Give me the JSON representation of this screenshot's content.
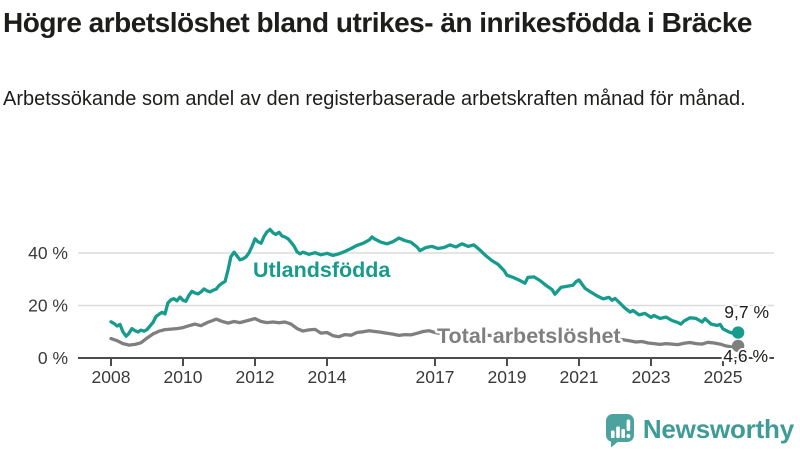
{
  "header": {
    "title": "Högre arbetslöshet bland utrikes- än inrikesfödda i Bräcke",
    "subtitle": "Arbetssökande som andel av den registerbaserade arbetskraften månad för månad."
  },
  "chart_data": {
    "type": "line",
    "title": "Högre arbetslöshet bland utrikes- än inrikesfödda i Bräcke",
    "subtitle": "Arbetssökande som andel av den registerbaserade arbetskraften månad för månad.",
    "unit": "%",
    "xlabel": "",
    "ylabel": "",
    "grid": "horizontal",
    "legend_position": "inline-labels",
    "xlim": [
      2007.85,
      2025.7
    ],
    "ylim": [
      0,
      52
    ],
    "x_ticks": [
      2008,
      2010,
      2012,
      2014,
      2017,
      2019,
      2021,
      2023,
      2025
    ],
    "y_ticks": [
      0,
      20,
      40
    ],
    "y_tick_labels": [
      "0 %",
      "20 %",
      "40 %"
    ],
    "series": [
      {
        "name": "Utlandsfödda",
        "color": "#179B8D",
        "end_label": "9,7 %",
        "end_value": 9.7,
        "points": [
          [
            2008.0,
            13.8
          ],
          [
            2008.08,
            13.2
          ],
          [
            2008.17,
            12.2
          ],
          [
            2008.25,
            12.8
          ],
          [
            2008.33,
            10.0
          ],
          [
            2008.42,
            8.3
          ],
          [
            2008.5,
            9.4
          ],
          [
            2008.58,
            11.2
          ],
          [
            2008.67,
            10.4
          ],
          [
            2008.75,
            9.9
          ],
          [
            2008.83,
            10.6
          ],
          [
            2008.92,
            10.2
          ],
          [
            2009.0,
            10.8
          ],
          [
            2009.17,
            13.6
          ],
          [
            2009.25,
            15.8
          ],
          [
            2009.33,
            16.6
          ],
          [
            2009.42,
            17.4
          ],
          [
            2009.5,
            16.8
          ],
          [
            2009.58,
            21.0
          ],
          [
            2009.67,
            22.2
          ],
          [
            2009.75,
            22.6
          ],
          [
            2009.83,
            21.8
          ],
          [
            2009.92,
            23.2
          ],
          [
            2010.0,
            22.0
          ],
          [
            2010.08,
            21.6
          ],
          [
            2010.17,
            24.0
          ],
          [
            2010.25,
            25.4
          ],
          [
            2010.33,
            24.8
          ],
          [
            2010.42,
            24.4
          ],
          [
            2010.5,
            25.2
          ],
          [
            2010.58,
            26.3
          ],
          [
            2010.67,
            25.6
          ],
          [
            2010.75,
            25.2
          ],
          [
            2010.83,
            25.8
          ],
          [
            2010.92,
            26.2
          ],
          [
            2011.0,
            27.6
          ],
          [
            2011.08,
            28.4
          ],
          [
            2011.17,
            29.2
          ],
          [
            2011.25,
            33.5
          ],
          [
            2011.33,
            38.6
          ],
          [
            2011.42,
            40.3
          ],
          [
            2011.5,
            38.9
          ],
          [
            2011.58,
            37.4
          ],
          [
            2011.67,
            37.8
          ],
          [
            2011.75,
            38.5
          ],
          [
            2011.83,
            40.0
          ],
          [
            2011.92,
            42.6
          ],
          [
            2012.0,
            45.4
          ],
          [
            2012.08,
            44.3
          ],
          [
            2012.17,
            43.7
          ],
          [
            2012.25,
            46.3
          ],
          [
            2012.33,
            48.0
          ],
          [
            2012.42,
            49.0
          ],
          [
            2012.5,
            47.7
          ],
          [
            2012.58,
            47.1
          ],
          [
            2012.67,
            47.9
          ],
          [
            2012.75,
            46.5
          ],
          [
            2012.83,
            46.1
          ],
          [
            2012.92,
            45.4
          ],
          [
            2013.0,
            44.1
          ],
          [
            2013.08,
            42.7
          ],
          [
            2013.17,
            40.4
          ],
          [
            2013.25,
            39.7
          ],
          [
            2013.33,
            40.3
          ],
          [
            2013.5,
            39.5
          ],
          [
            2013.67,
            40.1
          ],
          [
            2013.83,
            39.3
          ],
          [
            2014.0,
            39.9
          ],
          [
            2014.17,
            39.1
          ],
          [
            2014.33,
            39.7
          ],
          [
            2014.5,
            40.6
          ],
          [
            2014.67,
            41.7
          ],
          [
            2014.83,
            42.9
          ],
          [
            2015.0,
            43.7
          ],
          [
            2015.17,
            44.9
          ],
          [
            2015.25,
            46.1
          ],
          [
            2015.33,
            45.3
          ],
          [
            2015.5,
            44.1
          ],
          [
            2015.67,
            43.5
          ],
          [
            2015.83,
            44.3
          ],
          [
            2016.0,
            45.7
          ],
          [
            2016.17,
            44.7
          ],
          [
            2016.33,
            44.1
          ],
          [
            2016.5,
            42.3
          ],
          [
            2016.58,
            40.9
          ],
          [
            2016.75,
            42.1
          ],
          [
            2016.92,
            42.5
          ],
          [
            2017.08,
            41.7
          ],
          [
            2017.25,
            42.1
          ],
          [
            2017.42,
            43.1
          ],
          [
            2017.58,
            42.3
          ],
          [
            2017.75,
            43.5
          ],
          [
            2017.92,
            42.5
          ],
          [
            2018.08,
            43.1
          ],
          [
            2018.25,
            41.1
          ],
          [
            2018.42,
            38.9
          ],
          [
            2018.58,
            37.1
          ],
          [
            2018.75,
            35.7
          ],
          [
            2018.92,
            33.3
          ],
          [
            2019.0,
            31.5
          ],
          [
            2019.17,
            30.7
          ],
          [
            2019.33,
            29.7
          ],
          [
            2019.5,
            28.5
          ],
          [
            2019.58,
            30.7
          ],
          [
            2019.75,
            30.9
          ],
          [
            2019.92,
            29.5
          ],
          [
            2020.08,
            27.7
          ],
          [
            2020.25,
            26.1
          ],
          [
            2020.33,
            24.3
          ],
          [
            2020.5,
            26.9
          ],
          [
            2020.67,
            27.3
          ],
          [
            2020.83,
            27.7
          ],
          [
            2020.92,
            29.1
          ],
          [
            2021.0,
            29.7
          ],
          [
            2021.17,
            26.5
          ],
          [
            2021.33,
            25.1
          ],
          [
            2021.5,
            23.7
          ],
          [
            2021.67,
            22.5
          ],
          [
            2021.83,
            23.1
          ],
          [
            2021.92,
            22.0
          ],
          [
            2022.0,
            22.7
          ],
          [
            2022.17,
            20.5
          ],
          [
            2022.25,
            19.3
          ],
          [
            2022.42,
            17.5
          ],
          [
            2022.5,
            18.1
          ],
          [
            2022.67,
            16.4
          ],
          [
            2022.83,
            17.0
          ],
          [
            2023.0,
            15.5
          ],
          [
            2023.08,
            16.2
          ],
          [
            2023.25,
            15.1
          ],
          [
            2023.42,
            15.6
          ],
          [
            2023.58,
            14.3
          ],
          [
            2023.75,
            13.5
          ],
          [
            2023.83,
            12.9
          ],
          [
            2023.92,
            14.1
          ],
          [
            2024.08,
            15.3
          ],
          [
            2024.25,
            15.1
          ],
          [
            2024.42,
            13.7
          ],
          [
            2024.5,
            15.0
          ],
          [
            2024.67,
            12.9
          ],
          [
            2024.83,
            12.4
          ],
          [
            2024.92,
            12.8
          ],
          [
            2025.0,
            11.1
          ],
          [
            2025.17,
            9.9
          ],
          [
            2025.33,
            9.2
          ],
          [
            2025.42,
            9.7
          ]
        ]
      },
      {
        "name": "Total arbetslöshet",
        "color": "#7F7F7F",
        "end_label": "4,6 %",
        "end_value": 4.6,
        "points": [
          [
            2008.0,
            7.4
          ],
          [
            2008.17,
            6.6
          ],
          [
            2008.33,
            5.5
          ],
          [
            2008.5,
            4.9
          ],
          [
            2008.67,
            5.2
          ],
          [
            2008.83,
            5.8
          ],
          [
            2009.0,
            7.6
          ],
          [
            2009.17,
            9.2
          ],
          [
            2009.33,
            10.2
          ],
          [
            2009.5,
            10.8
          ],
          [
            2009.67,
            11.0
          ],
          [
            2009.83,
            11.2
          ],
          [
            2010.0,
            11.6
          ],
          [
            2010.17,
            12.3
          ],
          [
            2010.33,
            12.9
          ],
          [
            2010.5,
            12.3
          ],
          [
            2010.67,
            13.5
          ],
          [
            2010.83,
            14.3
          ],
          [
            2010.92,
            14.8
          ],
          [
            2011.08,
            14.0
          ],
          [
            2011.25,
            13.3
          ],
          [
            2011.42,
            13.9
          ],
          [
            2011.58,
            13.5
          ],
          [
            2011.75,
            14.1
          ],
          [
            2011.92,
            14.7
          ],
          [
            2012.0,
            15.0
          ],
          [
            2012.17,
            13.9
          ],
          [
            2012.33,
            13.5
          ],
          [
            2012.5,
            13.7
          ],
          [
            2012.67,
            13.4
          ],
          [
            2012.83,
            13.7
          ],
          [
            2013.0,
            12.9
          ],
          [
            2013.17,
            11.2
          ],
          [
            2013.33,
            10.3
          ],
          [
            2013.5,
            10.7
          ],
          [
            2013.67,
            10.9
          ],
          [
            2013.83,
            9.5
          ],
          [
            2014.0,
            9.7
          ],
          [
            2014.17,
            8.5
          ],
          [
            2014.33,
            8.1
          ],
          [
            2014.5,
            8.9
          ],
          [
            2014.67,
            8.7
          ],
          [
            2014.83,
            9.7
          ],
          [
            2015.0,
            10.0
          ],
          [
            2015.17,
            10.4
          ],
          [
            2015.33,
            10.1
          ],
          [
            2015.5,
            9.8
          ],
          [
            2015.67,
            9.4
          ],
          [
            2015.83,
            9.1
          ],
          [
            2016.0,
            8.6
          ],
          [
            2016.17,
            8.9
          ],
          [
            2016.33,
            8.8
          ],
          [
            2016.5,
            9.4
          ],
          [
            2016.67,
            10.1
          ],
          [
            2016.83,
            10.4
          ],
          [
            2017.0,
            9.7
          ],
          [
            2017.17,
            9.3
          ],
          [
            2017.33,
            9.5
          ],
          [
            2017.5,
            9.9
          ],
          [
            2017.75,
            9.6
          ],
          [
            2018.0,
            9.3
          ],
          [
            2018.25,
            8.9
          ],
          [
            2018.5,
            8.6
          ],
          [
            2018.75,
            8.3
          ],
          [
            2019.0,
            8.1
          ],
          [
            2019.25,
            7.9
          ],
          [
            2019.5,
            7.7
          ],
          [
            2019.75,
            7.9
          ],
          [
            2020.0,
            8.3
          ],
          [
            2020.25,
            8.9
          ],
          [
            2020.5,
            9.3
          ],
          [
            2020.75,
            9.1
          ],
          [
            2021.0,
            8.9
          ],
          [
            2021.25,
            8.5
          ],
          [
            2021.5,
            8.1
          ],
          [
            2021.75,
            7.7
          ],
          [
            2022.0,
            7.3
          ],
          [
            2022.25,
            6.9
          ],
          [
            2022.42,
            6.5
          ],
          [
            2022.58,
            6.1
          ],
          [
            2022.75,
            6.3
          ],
          [
            2022.92,
            5.7
          ],
          [
            2023.08,
            5.5
          ],
          [
            2023.25,
            5.2
          ],
          [
            2023.42,
            5.5
          ],
          [
            2023.58,
            5.3
          ],
          [
            2023.75,
            5.1
          ],
          [
            2023.92,
            5.6
          ],
          [
            2024.08,
            5.9
          ],
          [
            2024.25,
            5.5
          ],
          [
            2024.42,
            5.3
          ],
          [
            2024.58,
            6.0
          ],
          [
            2024.75,
            5.7
          ],
          [
            2024.92,
            5.3
          ],
          [
            2025.08,
            4.6
          ],
          [
            2025.25,
            4.2
          ],
          [
            2025.42,
            4.6
          ]
        ]
      }
    ]
  },
  "logo": {
    "name": "Newsworthy",
    "color": "#3E9B98",
    "icon": "bar-chart-speech-bubble-icon",
    "icon_color": "#4CA29E"
  },
  "colors": {
    "foreign_born_line": "#179B8D",
    "total_line": "#7F7F7F",
    "gridline": "#DBDBDB",
    "axis": "#4C4C4C",
    "text": "#1D1D1B"
  }
}
